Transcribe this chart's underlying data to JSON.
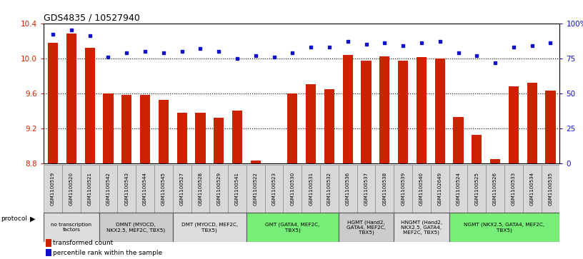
{
  "title": "GDS4835 / 10527940",
  "samples": [
    "GSM1100519",
    "GSM1100520",
    "GSM1100521",
    "GSM1100542",
    "GSM1100543",
    "GSM1100544",
    "GSM1100545",
    "GSM1100527",
    "GSM1100528",
    "GSM1100529",
    "GSM1100541",
    "GSM1100522",
    "GSM1100523",
    "GSM1100530",
    "GSM1100531",
    "GSM1100532",
    "GSM1100536",
    "GSM1100537",
    "GSM1100538",
    "GSM1100539",
    "GSM1100540",
    "GSM1102649",
    "GSM1100524",
    "GSM1100525",
    "GSM1100526",
    "GSM1100533",
    "GSM1100534",
    "GSM1100535"
  ],
  "transformed_count": [
    10.18,
    10.28,
    10.12,
    9.6,
    9.58,
    9.58,
    9.52,
    9.38,
    9.38,
    9.32,
    9.4,
    8.83,
    8.73,
    9.6,
    9.7,
    9.65,
    10.04,
    9.97,
    10.02,
    9.97,
    10.01,
    10.0,
    9.33,
    9.12,
    8.85,
    9.68,
    9.72,
    9.63
  ],
  "percentile_rank": [
    92,
    95,
    91,
    76,
    79,
    80,
    79,
    80,
    82,
    80,
    75,
    77,
    76,
    79,
    83,
    83,
    87,
    85,
    86,
    84,
    86,
    87,
    79,
    77,
    72,
    83,
    84,
    86
  ],
  "ylim_left": [
    8.8,
    10.4
  ],
  "ylim_right": [
    0,
    100
  ],
  "yticks_left": [
    8.8,
    9.2,
    9.6,
    10.0,
    10.4
  ],
  "yticks_right": [
    0,
    25,
    50,
    75,
    100
  ],
  "ytick_labels_right": [
    "0",
    "25",
    "50",
    "75",
    "100%"
  ],
  "bar_color": "#cc2200",
  "dot_color": "#1111cc",
  "protocol_groups": [
    {
      "label": "no transcription\nfactors",
      "start": 0,
      "end": 2,
      "color": "#dddddd"
    },
    {
      "label": "DMNT (MYOCD,\nNKX2.5, MEF2C, TBX5)",
      "start": 3,
      "end": 6,
      "color": "#cccccc"
    },
    {
      "label": "DMT (MYOCD, MEF2C,\nTBX5)",
      "start": 7,
      "end": 10,
      "color": "#dddddd"
    },
    {
      "label": "GMT (GATA4, MEF2C,\nTBX5)",
      "start": 11,
      "end": 15,
      "color": "#77ee77"
    },
    {
      "label": "HGMT (Hand2,\nGATA4, MEF2C,\nTBX5)",
      "start": 16,
      "end": 18,
      "color": "#cccccc"
    },
    {
      "label": "HNGMT (Hand2,\nNKX2.5, GATA4,\nMEF2C, TBX5)",
      "start": 19,
      "end": 21,
      "color": "#dddddd"
    },
    {
      "label": "NGMT (NKX2.5, GATA4, MEF2C,\nTBX5)",
      "start": 22,
      "end": 27,
      "color": "#77ee77"
    }
  ]
}
